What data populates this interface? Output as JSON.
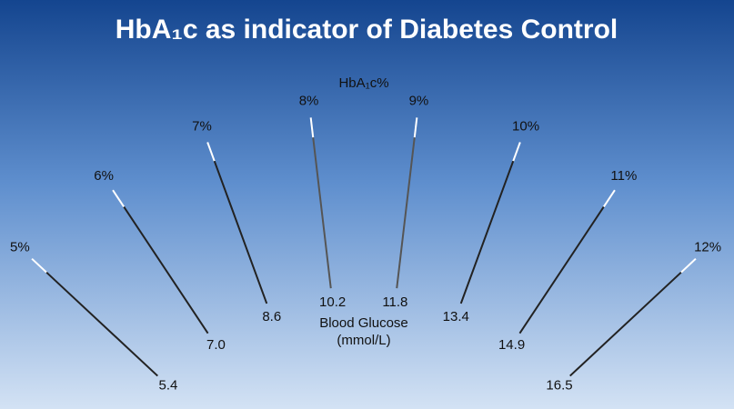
{
  "header": {
    "title": "HbA₁c as indicator of Diabetes Control"
  },
  "gauge": {
    "top_label": "HbA₁c%",
    "center_label": [
      "Blood Glucose",
      "(mmol/L)"
    ],
    "ticks": [
      {
        "hba1c": "5%",
        "glucose": "5.4"
      },
      {
        "hba1c": "6%",
        "glucose": "7.0"
      },
      {
        "hba1c": "7%",
        "glucose": "8.6"
      },
      {
        "hba1c": "8%",
        "glucose": "10.2"
      },
      {
        "hba1c": "9%",
        "glucose": "11.8"
      },
      {
        "hba1c": "10%",
        "glucose": "13.4"
      },
      {
        "hba1c": "11%",
        "glucose": "14.9"
      },
      {
        "hba1c": "12%",
        "glucose": "16.5"
      }
    ]
  }
}
